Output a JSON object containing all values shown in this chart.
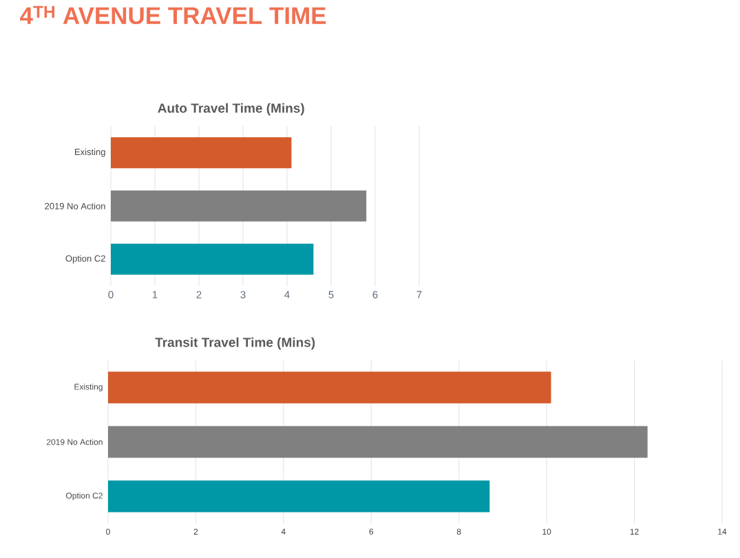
{
  "chart_data": [
    {
      "type": "bar",
      "orientation": "horizontal",
      "title": "Auto Travel Time (Mins)",
      "annotations": [
        "4$^{TH}$ AVENUE TRAVEL TIME"
      ],
      "categories": [
        "Existing",
        "2019 No Action",
        "Option C2"
      ],
      "values": [
        4.1,
        5.8,
        4.6
      ],
      "colors": [
        "#d45b2b",
        "#808080",
        "#0098a6"
      ],
      "xlim": [
        0,
        7
      ],
      "xticks": [
        0,
        1,
        2,
        3,
        4,
        5,
        6,
        7
      ],
      "grid": "x"
    },
    {
      "type": "bar",
      "orientation": "horizontal",
      "title": "Transit Travel Time (Mins)",
      "categories": [
        "Existing",
        "2019 No Action",
        "Option C2"
      ],
      "values": [
        10.1,
        12.3,
        8.7
      ],
      "colors": [
        "#d45b2b",
        "#808080",
        "#0098a6"
      ],
      "xlim": [
        0,
        14
      ],
      "xticks": [
        0,
        2,
        4,
        6,
        8,
        10,
        12,
        14
      ],
      "grid": "x"
    }
  ]
}
